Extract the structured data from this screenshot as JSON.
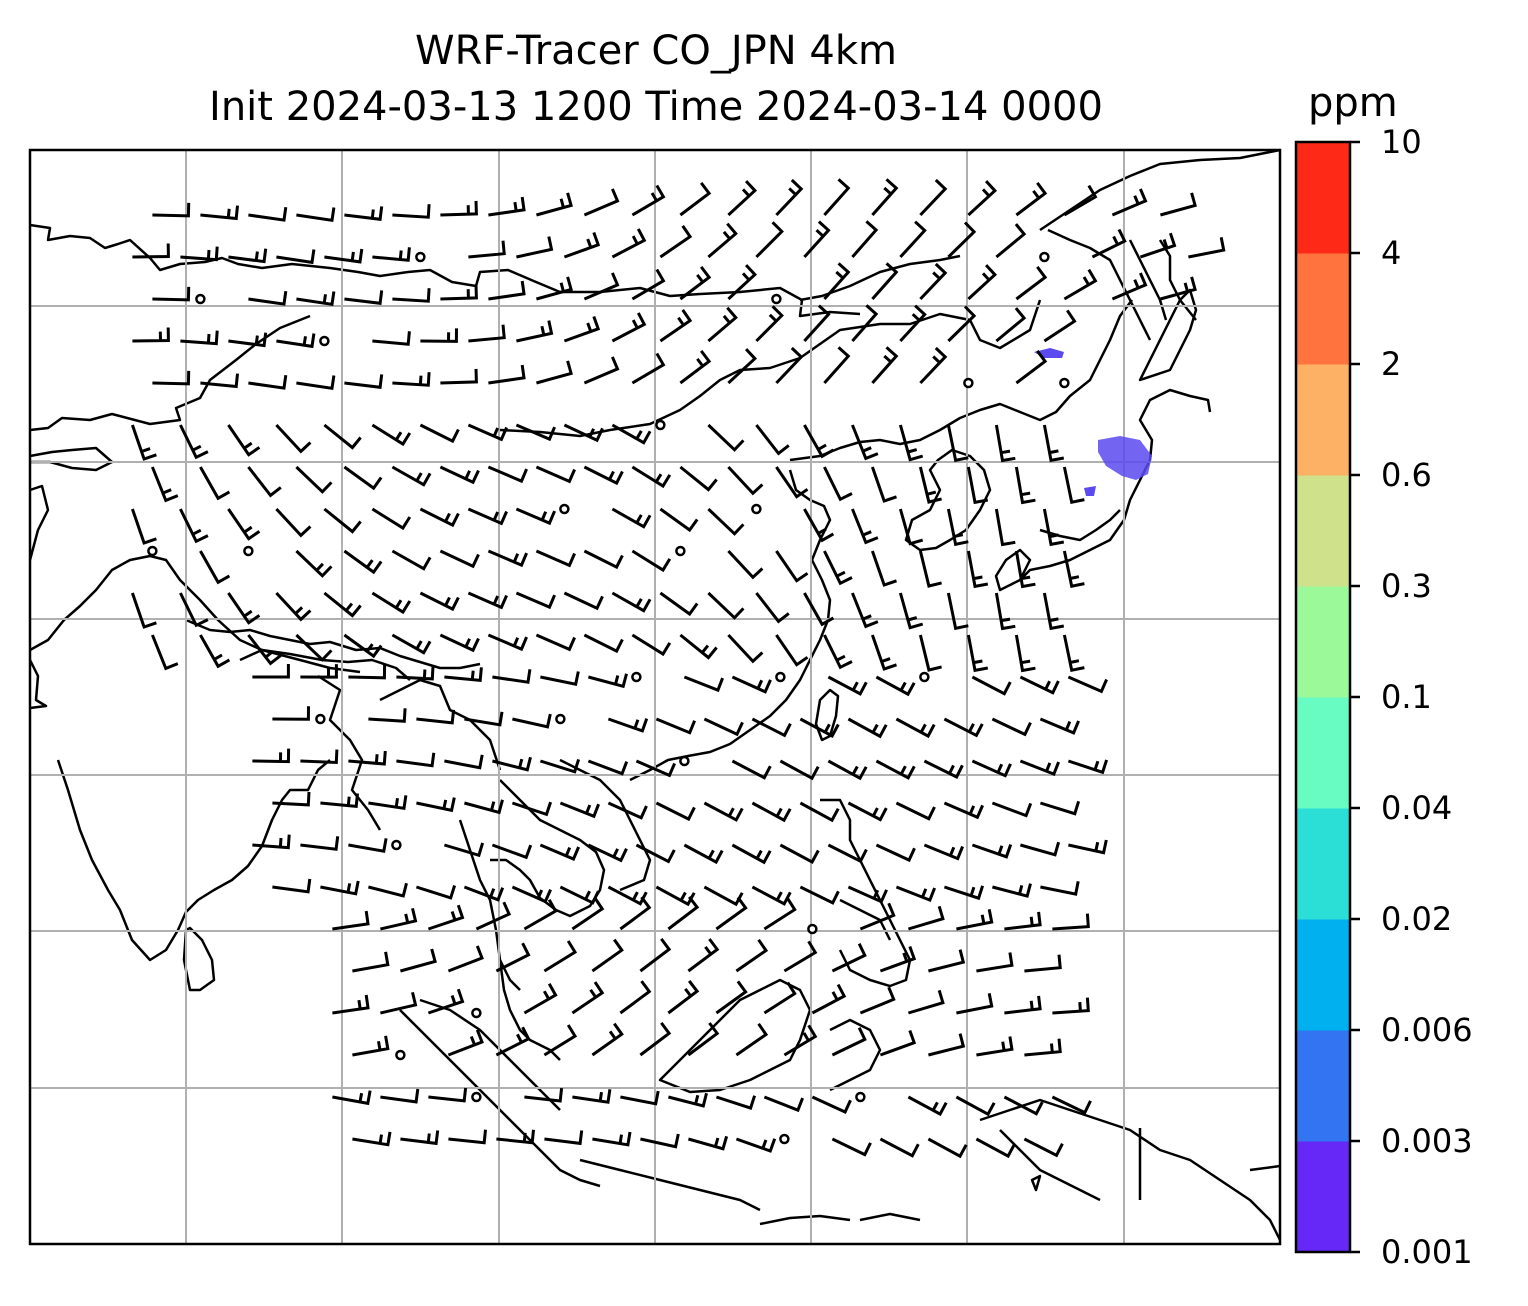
{
  "title": {
    "line1": "WRF-Tracer CO_JPN 4km",
    "line2": "Init 2024-03-13 1200 Time 2024-03-14 0000"
  },
  "colorbar": {
    "unit": "ppm",
    "labels": [
      "0.001",
      "0.003",
      "0.006",
      "0.02",
      "0.04",
      "0.1",
      "0.3",
      "0.6",
      "2",
      "4",
      "10"
    ],
    "colors": [
      "#6528f6",
      "#3374f2",
      "#00b0ef",
      "#2bdfd7",
      "#68fbc2",
      "#9cf99a",
      "#cfe18a",
      "#fdb164",
      "#fe733e",
      "#fe2a17"
    ]
  },
  "map": {
    "gridlines": true,
    "tracer_plume_color": "#5a4af0",
    "calm_marker": "circle",
    "wind_barbs": "black"
  }
}
